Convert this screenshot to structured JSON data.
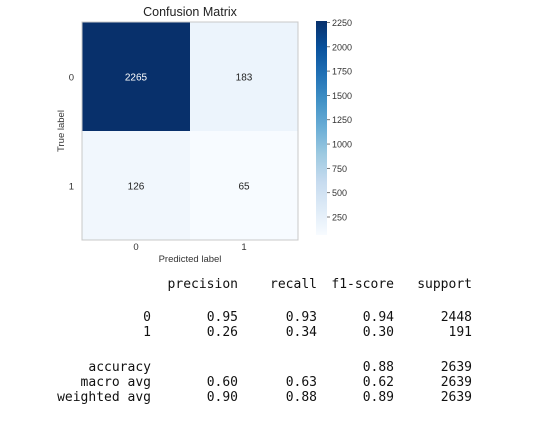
{
  "chart_data": {
    "type": "heatmap",
    "title": "Confusion Matrix",
    "xlabel": "Predicted label",
    "ylabel": "True label",
    "x_tick_labels": [
      "0",
      "1"
    ],
    "y_tick_labels": [
      "0",
      "1"
    ],
    "matrix": [
      [
        2265,
        183
      ],
      [
        126,
        65
      ]
    ],
    "colormap": "Blues",
    "colorbar": {
      "min": 65,
      "max": 2265,
      "ticks": [
        250,
        500,
        750,
        1000,
        1250,
        1500,
        1750,
        2000,
        2250
      ],
      "tick_labels": [
        "250",
        "500",
        "750",
        "1000",
        "1250",
        "1500",
        "1750",
        "2000",
        "2250"
      ]
    },
    "grid": false
  },
  "report": {
    "headers": [
      "precision",
      "recall",
      "f1-score",
      "support"
    ],
    "rows": [
      {
        "label": "0",
        "values": [
          "0.95",
          "0.93",
          "0.94",
          "2448"
        ]
      },
      {
        "label": "1",
        "values": [
          "0.26",
          "0.34",
          "0.30",
          "191"
        ]
      }
    ],
    "summary": [
      {
        "label": "accuracy",
        "values": [
          "",
          "",
          "0.88",
          "2639"
        ]
      },
      {
        "label": "macro avg",
        "values": [
          "0.60",
          "0.63",
          "0.62",
          "2639"
        ]
      },
      {
        "label": "weighted avg",
        "values": [
          "0.90",
          "0.88",
          "0.89",
          "2639"
        ]
      }
    ]
  }
}
